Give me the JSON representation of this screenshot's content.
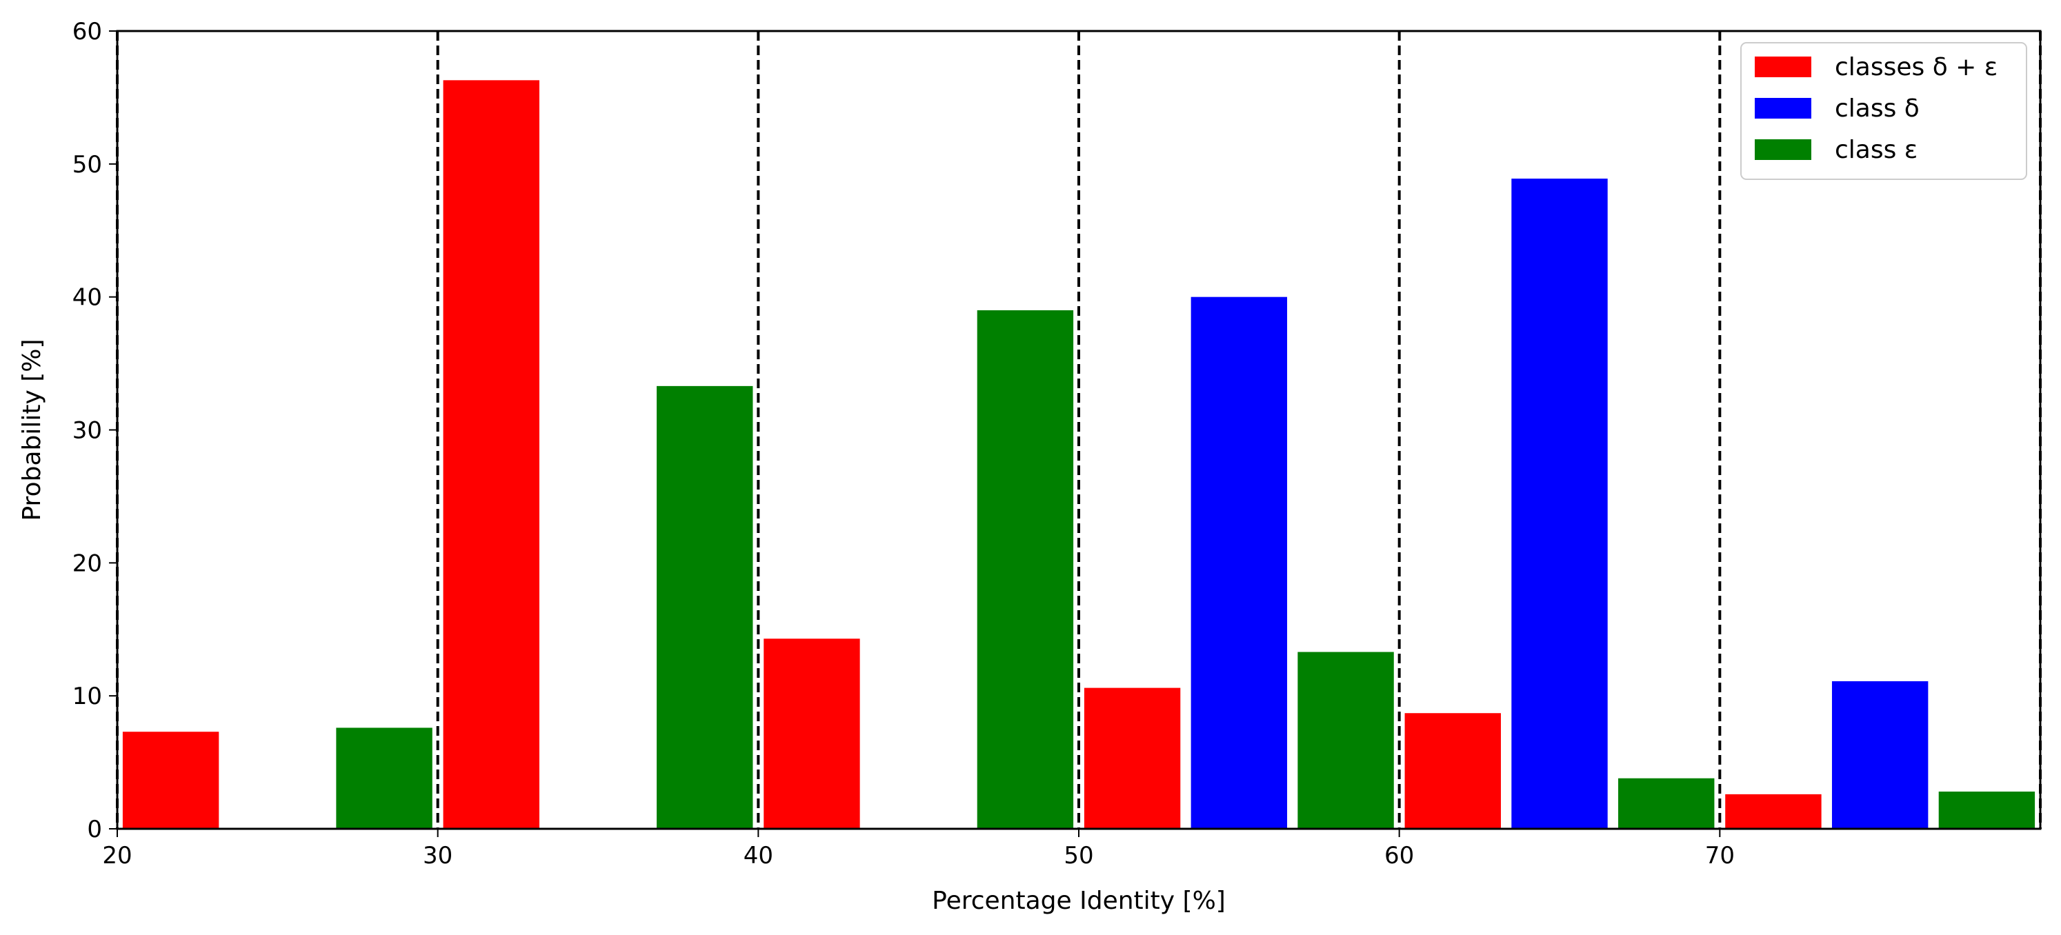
{
  "chart_data": {
    "type": "bar",
    "xlabel": "Percentage Identity [%]",
    "ylabel": "Probability [%]",
    "xlim": [
      20,
      80
    ],
    "ylim": [
      0,
      60
    ],
    "xticks": [
      "20",
      "30",
      "40",
      "50",
      "60",
      "70"
    ],
    "yticks": [
      "0",
      "10",
      "20",
      "30",
      "40",
      "50",
      "60"
    ],
    "bin_edges": [
      20,
      30,
      40,
      50,
      60,
      70,
      80
    ],
    "dashed_vlines": [
      20,
      30,
      40,
      50,
      60,
      70,
      80
    ],
    "bin_centers": [
      25,
      35,
      45,
      55,
      65,
      75
    ],
    "legend_position": "top-right",
    "series": [
      {
        "name": "classes δ + ε",
        "color": "#ff0000",
        "values": [
          7.3,
          56.3,
          14.3,
          10.6,
          8.7,
          2.6
        ]
      },
      {
        "name": "class δ",
        "color": "#0000ff",
        "values": [
          0,
          0,
          0,
          40.0,
          48.9,
          11.1
        ]
      },
      {
        "name": "class ε",
        "color": "#008000",
        "values": [
          7.6,
          33.3,
          39.0,
          13.3,
          3.8,
          2.8
        ]
      }
    ]
  }
}
